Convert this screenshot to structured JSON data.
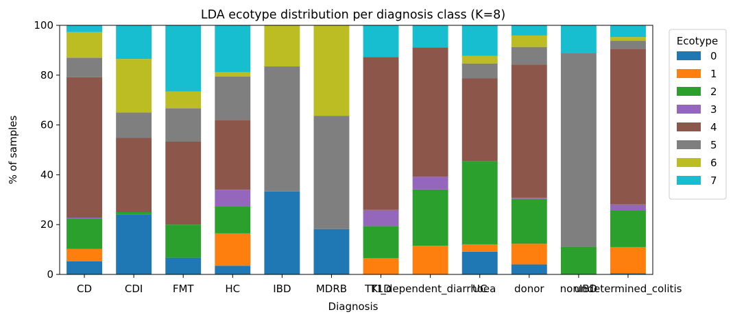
{
  "chart_data": {
    "type": "bar",
    "stacked": true,
    "title": "LDA ecotype distribution per diagnosis class (K=8)",
    "xlabel": "Diagnosis",
    "ylabel": "% of samples",
    "ylim": [
      0,
      100
    ],
    "yticks": [
      0,
      20,
      40,
      60,
      80,
      100
    ],
    "grid": false,
    "legend_title": "Ecotype",
    "legend_position": "outside-right",
    "categories": [
      "CD",
      "CDI",
      "FMT",
      "HC",
      "IBD",
      "MDRB",
      "T1D",
      "TKI_dependent_diarrhoea",
      "UC",
      "donor",
      "nonIBD",
      "undetermined_colitis"
    ],
    "series": [
      {
        "name": "0",
        "color": "#1f77b4",
        "values": [
          5.3,
          24.0,
          6.7,
          3.5,
          33.3,
          18.2,
          0.0,
          0.0,
          9.1,
          4.0,
          0.0,
          0.5
        ]
      },
      {
        "name": "1",
        "color": "#ff7f0e",
        "values": [
          5.0,
          0.0,
          0.0,
          13.0,
          0.0,
          0.0,
          6.5,
          11.5,
          3.0,
          8.3,
          0.0,
          10.5
        ]
      },
      {
        "name": "2",
        "color": "#2ca02c",
        "values": [
          12.2,
          1.0,
          13.3,
          10.7,
          0.0,
          0.0,
          12.9,
          22.6,
          33.3,
          18.0,
          11.1,
          14.8
        ]
      },
      {
        "name": "3",
        "color": "#9467bd",
        "values": [
          0.3,
          0.0,
          0.0,
          6.8,
          0.0,
          0.0,
          6.5,
          5.1,
          0.0,
          0.5,
          0.0,
          2.3
        ]
      },
      {
        "name": "4",
        "color": "#8c564b",
        "values": [
          56.4,
          29.8,
          33.3,
          28.0,
          0.0,
          0.0,
          61.4,
          51.9,
          33.3,
          53.5,
          0.0,
          62.4
        ]
      },
      {
        "name": "5",
        "color": "#7f7f7f",
        "values": [
          7.8,
          10.2,
          13.4,
          17.4,
          50.2,
          45.5,
          0.0,
          0.0,
          6.0,
          7.0,
          77.8,
          3.3
        ]
      },
      {
        "name": "6",
        "color": "#bcbd22",
        "values": [
          10.3,
          21.5,
          6.7,
          1.8,
          16.5,
          36.3,
          0.0,
          0.0,
          3.0,
          4.6,
          0.0,
          1.5
        ]
      },
      {
        "name": "7",
        "color": "#17becf",
        "values": [
          2.7,
          13.5,
          26.6,
          18.8,
          0.0,
          0.0,
          12.7,
          8.9,
          12.3,
          4.1,
          11.1,
          4.7
        ]
      }
    ],
    "extra_series_note": ""
  }
}
